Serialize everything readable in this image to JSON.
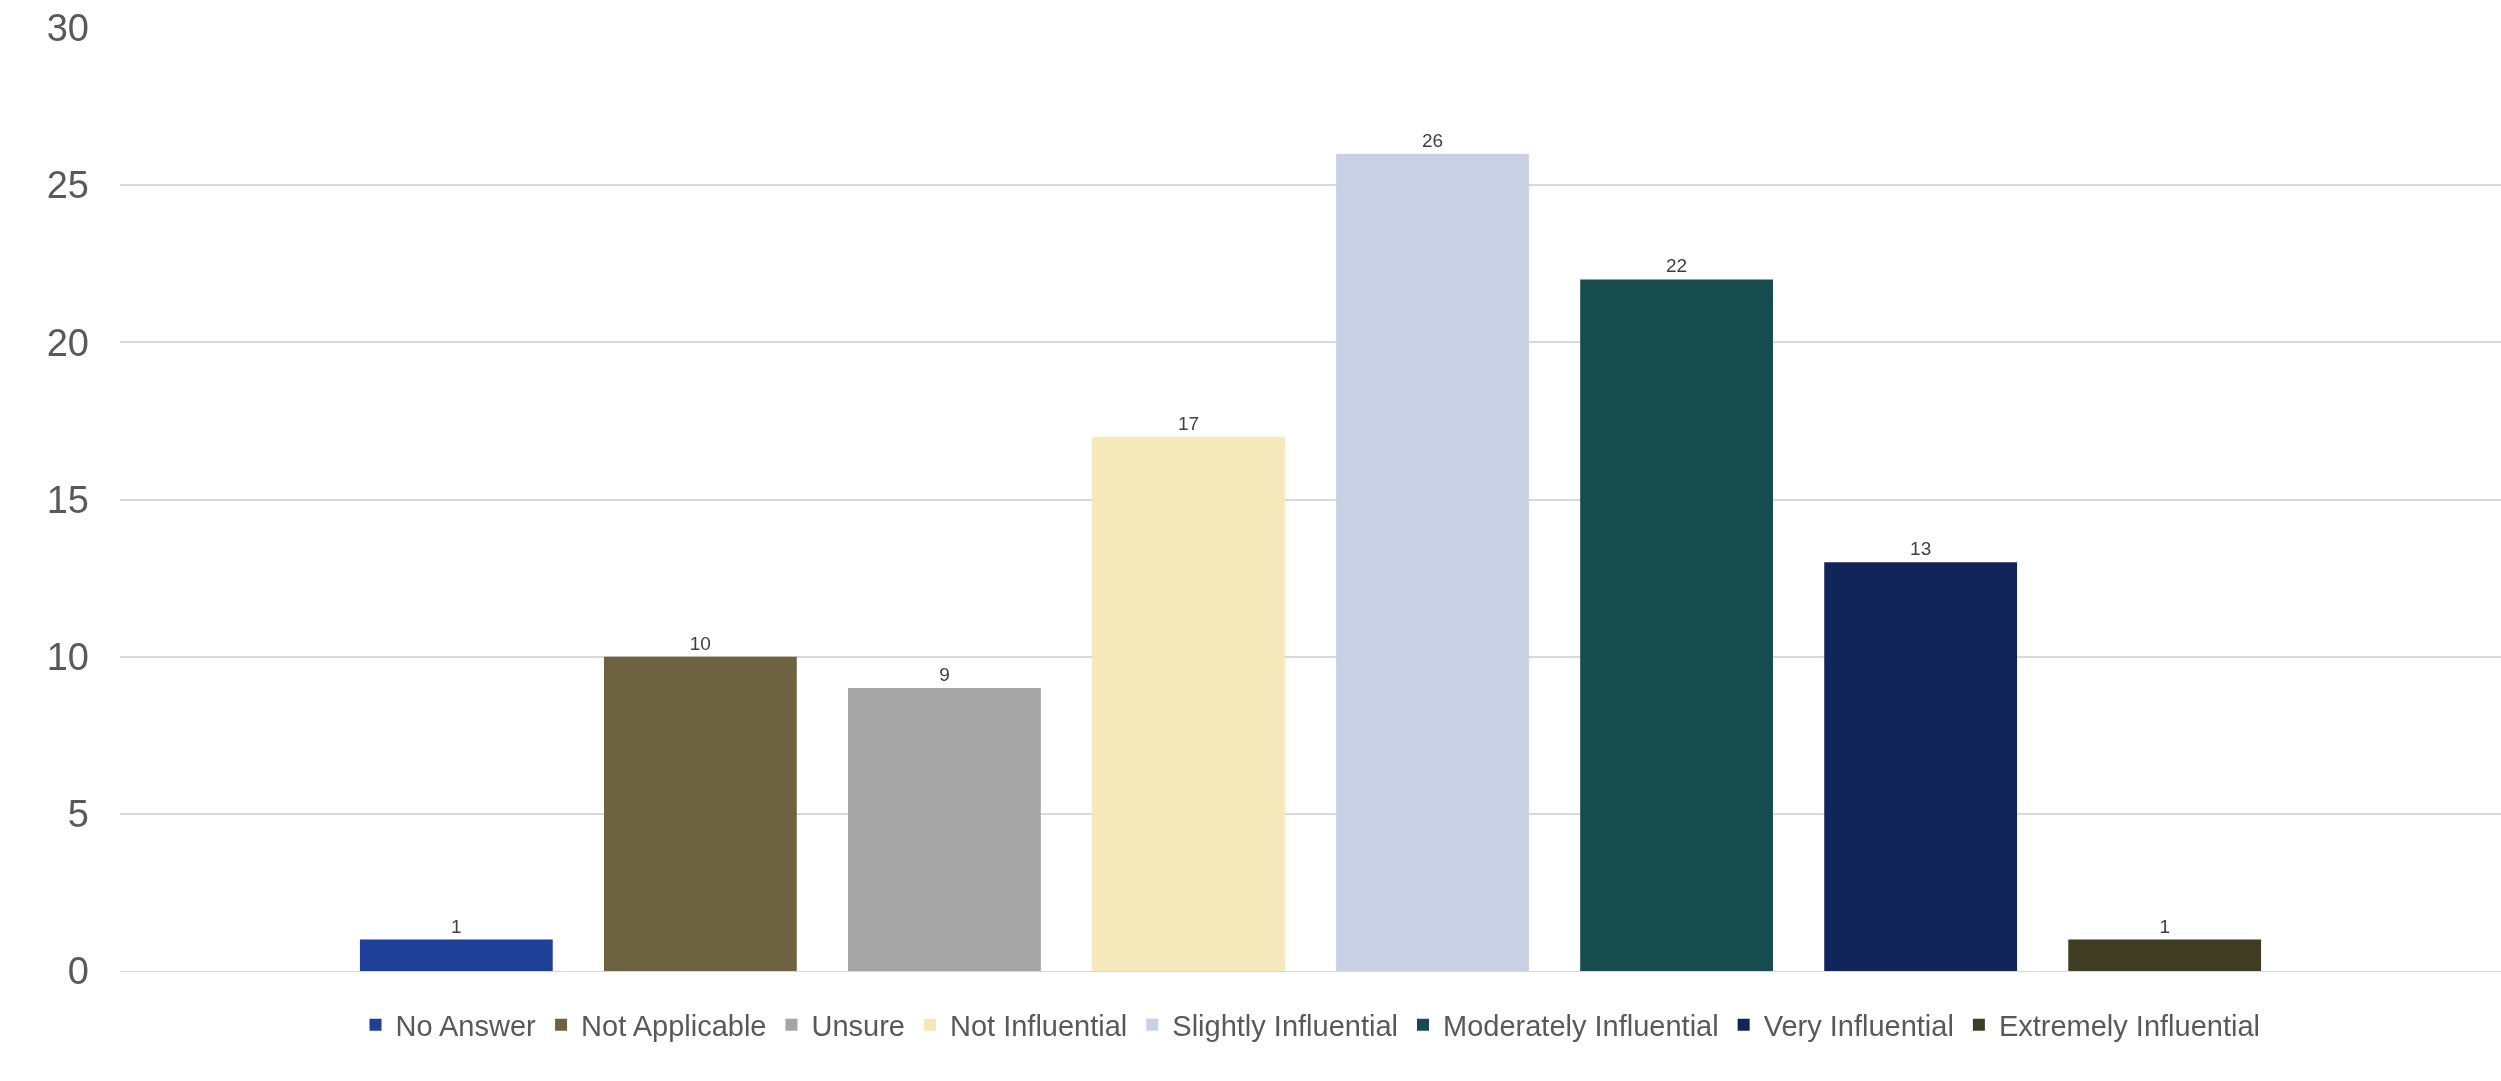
{
  "chart_data": {
    "type": "bar",
    "categories": [
      null
    ],
    "series": [
      {
        "name": "No Answer",
        "color": "#1f3f99",
        "values": [
          1
        ]
      },
      {
        "name": "Not Applicable",
        "color": "#6e6340",
        "values": [
          10
        ]
      },
      {
        "name": "Unsure",
        "color": "#a5a5a5",
        "values": [
          9
        ]
      },
      {
        "name": "Not Influential",
        "color": "#f5e9bb",
        "values": [
          17
        ]
      },
      {
        "name": "Slightly Influential",
        "color": "#c8d0e4",
        "values": [
          26
        ]
      },
      {
        "name": "Moderately Influential",
        "color": "#174c4f",
        "values": [
          22
        ]
      },
      {
        "name": "Very Influential",
        "color": "#12255a",
        "values": [
          13
        ]
      },
      {
        "name": "Extremely Influential",
        "color": "#3f3c24",
        "values": [
          1
        ]
      }
    ],
    "ylim": [
      0,
      30
    ],
    "yticks": [
      0,
      5,
      10,
      15,
      20,
      25,
      30
    ],
    "grid": "y",
    "legend": "bottom",
    "data_labels": true
  }
}
